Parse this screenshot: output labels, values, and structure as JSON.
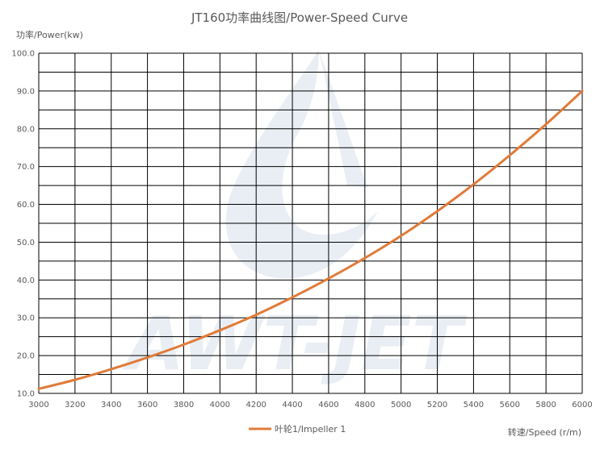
{
  "chart_data": {
    "type": "line",
    "title": "JT160功率曲线图/Power-Speed Curve",
    "xlabel": "转速/Speed (r/m)",
    "ylabel": "功率/Power(kw)",
    "xlim": [
      3000,
      6000
    ],
    "ylim": [
      10,
      100
    ],
    "x_ticks": [
      "3000",
      "3200",
      "3400",
      "3600",
      "3800",
      "4000",
      "4200",
      "4400",
      "4600",
      "4800",
      "5000",
      "5200",
      "5400",
      "5600",
      "5800",
      "6000"
    ],
    "y_ticks": [
      "10.0",
      "20.0",
      "30.0",
      "40.0",
      "50.0",
      "60.0",
      "70.0",
      "80.0",
      "90.0",
      "100.0"
    ],
    "grid": true,
    "legend_position": "bottom",
    "watermark": "AWT-JET",
    "series": [
      {
        "name": "叶轮1/Impeller 1",
        "color": "#E07B39",
        "x": [
          3000,
          3200,
          3400,
          3600,
          3800,
          4000,
          4200,
          4400,
          4600,
          4800,
          5000,
          5200,
          5400,
          5600,
          5800,
          6000
        ],
        "y": [
          11.2,
          13.6,
          16.4,
          19.5,
          22.9,
          26.7,
          30.8,
          35.4,
          40.4,
          45.8,
          51.7,
          58.2,
          65.3,
          73.0,
          81.2,
          90.0
        ]
      }
    ]
  }
}
